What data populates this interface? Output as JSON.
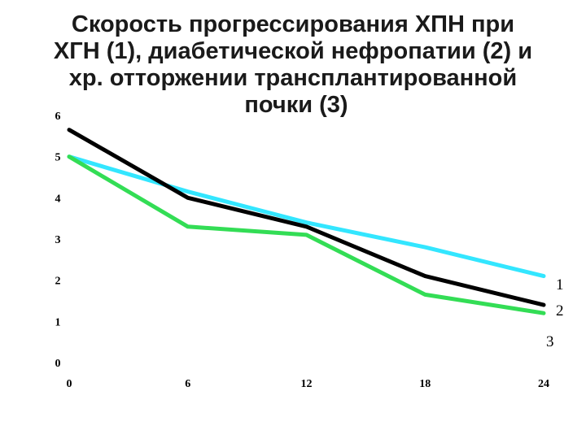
{
  "chart_data": {
    "type": "line",
    "title_lines": [
      "Скорость прогрессирования ХПН при",
      "ХГН (1), диабетической нефропатии (2) и",
      "хр. отторжении трансплантированной",
      "почки (3)"
    ],
    "x": [
      0,
      6,
      12,
      18,
      24
    ],
    "x_tick_labels": [
      "0",
      "6",
      "12",
      "18",
      "24"
    ],
    "y_tick_labels": [
      "0",
      "1",
      "2",
      "3",
      "4",
      "5",
      "6"
    ],
    "xlim": [
      0,
      24
    ],
    "ylim": [
      0,
      6
    ],
    "grid": false,
    "series": [
      {
        "name": "1",
        "color": "#33e6ff",
        "values": [
          5.0,
          4.15,
          3.4,
          2.8,
          2.1
        ]
      },
      {
        "name": "2",
        "color": "#000000",
        "values": [
          5.65,
          4.0,
          3.3,
          2.1,
          1.4
        ]
      },
      {
        "name": "3",
        "color": "#33dd55",
        "values": [
          5.0,
          3.3,
          3.1,
          1.65,
          1.2
        ]
      }
    ]
  }
}
